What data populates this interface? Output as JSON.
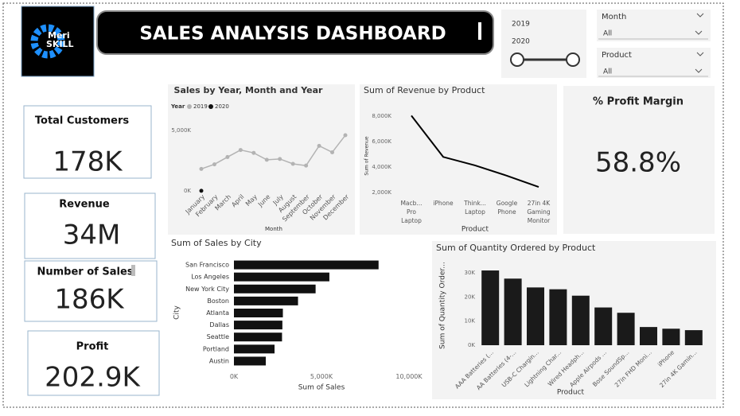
{
  "header": {
    "logo_top": "Meri",
    "logo_bottom": "SKILL",
    "title": "SALES ANALYSIS DASHBOARD"
  },
  "slicers": {
    "year": {
      "options": [
        "2019",
        "2020"
      ]
    },
    "month": {
      "label": "Month",
      "value": "All"
    },
    "product": {
      "label": "Product",
      "value": "All"
    }
  },
  "cards": [
    {
      "label": "Total Customers",
      "value": "178K"
    },
    {
      "label": "Revenue",
      "value": "34M"
    },
    {
      "label": "Number of Sales",
      "value": "186K"
    },
    {
      "label": "Profit",
      "value": "202.9K"
    },
    {
      "label": "% Profit Margin",
      "value": "58.8%"
    }
  ],
  "chart_data": [
    {
      "type": "line",
      "title": "Sales by Year, Month and Year",
      "legend_title": "Year",
      "x_label": "Month",
      "categories": [
        "January",
        "February",
        "March",
        "April",
        "May",
        "June",
        "July",
        "August",
        "September",
        "October",
        "November",
        "December"
      ],
      "series": [
        {
          "name": "2019",
          "color": "#b3b3b3",
          "values": [
            1822,
            2203,
            2807,
            3391,
            3152,
            2578,
            2647,
            2244,
            2098,
            3736,
            3200,
            4614
          ]
        },
        {
          "name": "2020",
          "color": "#111111",
          "values": [
            8,
            null,
            null,
            null,
            null,
            null,
            null,
            null,
            null,
            null,
            null,
            null
          ]
        }
      ],
      "ylim": [
        0,
        6000
      ],
      "yticks": [
        {
          "value": 0,
          "label": "0K"
        },
        {
          "value": 5000,
          "label": "5,000K"
        }
      ],
      "markers": true
    },
    {
      "type": "line",
      "title": "Sum of Revenue by Product",
      "x_label": "Product",
      "y_label": "Sum of Revenue",
      "categories": [
        "Macb... Pro Laptop",
        "iPhone",
        "Think... Laptop",
        "Google Phone",
        "27in 4K Gaming Monitor"
      ],
      "values": [
        8037,
        4795,
        4129,
        3319,
        2435
      ],
      "color": "#000000",
      "ylim": [
        1500,
        8500
      ],
      "yticks": [
        {
          "value": 2000,
          "label": "2,000K"
        },
        {
          "value": 4000,
          "label": "4,000K"
        },
        {
          "value": 6000,
          "label": "6,000K"
        },
        {
          "value": 8000,
          "label": "8,000K"
        }
      ]
    },
    {
      "type": "barh",
      "title": "Sum of Sales by City",
      "x_label": "Sum of Sales",
      "y_label": "City",
      "categories": [
        "San Francisco",
        "Los Angeles",
        "New York City",
        "Boston",
        "Atlanta",
        "Dallas",
        "Seattle",
        "Portland",
        "Austin"
      ],
      "values": [
        8262,
        5452,
        4665,
        3661,
        2796,
        2767,
        2747,
        2320,
        1820
      ],
      "color": "#111111",
      "xlim": [
        0,
        10000
      ],
      "xticks": [
        {
          "value": 0,
          "label": "0K"
        },
        {
          "value": 5000,
          "label": "5,000K"
        },
        {
          "value": 10000,
          "label": "10,000K"
        }
      ]
    },
    {
      "type": "bar",
      "title": "Sum of Quantity Ordered by Product",
      "x_label": "Product",
      "y_label": "Sum of Quantity Order...",
      "categories": [
        "AAA Batteries (...",
        "AA Batteries (4-...",
        "USB-C Chargin...",
        "Lightning Char...",
        "Wired Headph...",
        "Apple Airpods ...",
        "Bose SoundSp...",
        "27in FHD Moni...",
        "iPhone",
        "27in 4K Gamin..."
      ],
      "values": [
        31017,
        27635,
        23975,
        23217,
        20557,
        15661,
        13457,
        7550,
        6849,
        6244
      ],
      "color": "#1a1a1a",
      "ylim": [
        0,
        34000
      ],
      "yticks": [
        {
          "value": 0,
          "label": "0K"
        },
        {
          "value": 10000,
          "label": "10K"
        },
        {
          "value": 20000,
          "label": "20K"
        },
        {
          "value": 30000,
          "label": "30K"
        }
      ]
    }
  ]
}
